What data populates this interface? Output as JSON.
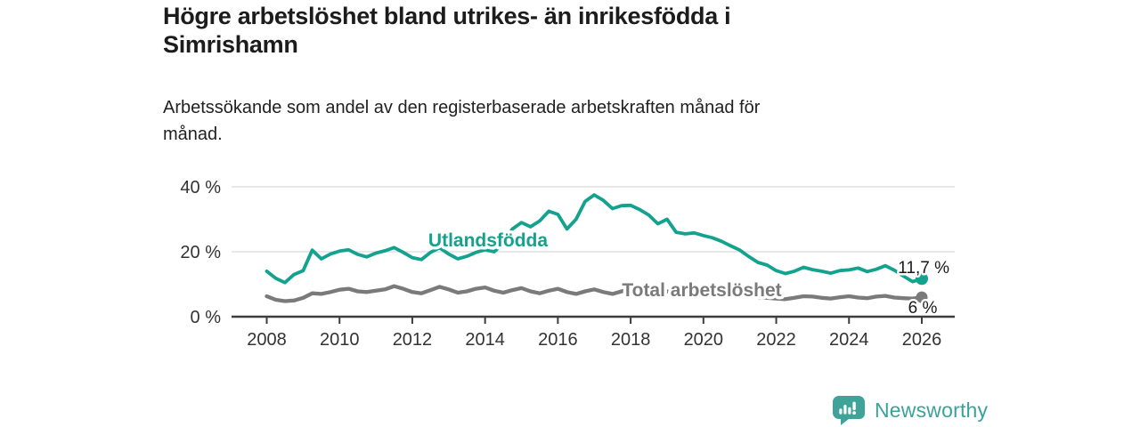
{
  "header": {
    "title_line1": "Högre arbetslöshet bland utrikes- än inrikesfödda i",
    "title_line2": "Simrishamn",
    "subtitle_line1": "Arbetssökande som andel av den registerbaserade arbetskraften månad för",
    "subtitle_line2": "månad."
  },
  "colors": {
    "accent_teal": "#12a28e",
    "line_gray": "#7a7a7a",
    "axis": "#3d3d3d",
    "gridline": "#d9d9d9",
    "tick_text": "#333333",
    "value_text": "#1a1a1a",
    "brand_teal": "#3ca19a"
  },
  "chart_data": {
    "type": "line",
    "title": "Högre arbetslöshet bland utrikes- än inrikesfödda i Simrishamn",
    "subtitle": "Arbetssökande som andel av den registerbaserade arbetskraften månad för månad.",
    "xlabel": "",
    "ylabel": "",
    "grid": "horizontal-y",
    "legend_position": "inline-labels",
    "ylim": [
      0,
      40
    ],
    "xlim": [
      2008,
      2026.9
    ],
    "y_ticks": [
      0,
      20,
      40
    ],
    "y_tick_labels": [
      "0 %",
      "20 %",
      "40 %"
    ],
    "x_ticks": [
      2008,
      2010,
      2012,
      2014,
      2016,
      2018,
      2020,
      2022,
      2024,
      2026
    ],
    "x_tick_labels": [
      "2008",
      "2010",
      "2012",
      "2014",
      "2016",
      "2018",
      "2020",
      "2022",
      "2024",
      "2026"
    ],
    "x": [
      2008.0,
      2008.25,
      2008.5,
      2008.75,
      2009.0,
      2009.25,
      2009.5,
      2009.75,
      2010.0,
      2010.25,
      2010.5,
      2010.75,
      2011.0,
      2011.25,
      2011.5,
      2011.75,
      2012.0,
      2012.25,
      2012.5,
      2012.75,
      2013.0,
      2013.25,
      2013.5,
      2013.75,
      2014.0,
      2014.25,
      2014.5,
      2014.75,
      2015.0,
      2015.25,
      2015.5,
      2015.75,
      2016.0,
      2016.25,
      2016.5,
      2016.75,
      2017.0,
      2017.25,
      2017.5,
      2017.75,
      2018.0,
      2018.25,
      2018.5,
      2018.75,
      2019.0,
      2019.25,
      2019.5,
      2019.75,
      2020.0,
      2020.25,
      2020.5,
      2020.75,
      2021.0,
      2021.25,
      2021.5,
      2021.75,
      2022.0,
      2022.25,
      2022.5,
      2022.75,
      2023.0,
      2023.25,
      2023.5,
      2023.75,
      2024.0,
      2024.25,
      2024.5,
      2024.75,
      2025.0,
      2025.25,
      2025.5,
      2025.75,
      2026.0
    ],
    "series": [
      {
        "id": "utlandsfodda",
        "name": "Utlandsfödda",
        "color": "#12a28e",
        "end_value": 11.7,
        "end_label": "11,7 %",
        "values": [
          14.0,
          11.8,
          10.5,
          13.0,
          14.2,
          20.5,
          17.8,
          19.3,
          20.2,
          20.6,
          19.2,
          18.4,
          19.6,
          20.3,
          21.3,
          19.8,
          18.2,
          17.6,
          19.8,
          21.2,
          19.3,
          17.8,
          18.6,
          19.8,
          20.6,
          20.0,
          22.5,
          27.0,
          29.0,
          27.7,
          29.5,
          32.5,
          31.5,
          27.0,
          30.0,
          35.5,
          37.5,
          35.8,
          33.3,
          34.2,
          34.3,
          33.0,
          31.3,
          28.6,
          30.0,
          26.0,
          25.5,
          25.8,
          25.0,
          24.3,
          23.2,
          21.8,
          20.5,
          18.5,
          16.7,
          15.9,
          14.2,
          13.3,
          14.0,
          15.2,
          14.5,
          14.0,
          13.4,
          14.2,
          14.4,
          15.0,
          13.9,
          14.6,
          15.7,
          14.3,
          12.5,
          10.8,
          11.7
        ]
      },
      {
        "id": "total-arbetsloshet",
        "name": "Total arbetslöshet",
        "color": "#7a7a7a",
        "end_value": 6,
        "end_label": "6 %",
        "values": [
          6.3,
          5.2,
          4.8,
          5.0,
          5.8,
          7.2,
          7.0,
          7.6,
          8.3,
          8.6,
          7.8,
          7.6,
          8.0,
          8.4,
          9.4,
          8.6,
          7.6,
          7.2,
          8.2,
          9.2,
          8.4,
          7.4,
          7.8,
          8.6,
          9.0,
          8.0,
          7.4,
          8.2,
          8.8,
          7.8,
          7.2,
          8.0,
          8.6,
          7.6,
          7.0,
          7.8,
          8.4,
          7.6,
          7.0,
          7.8,
          8.5,
          7.8,
          7.2,
          7.5,
          7.8,
          7.2,
          6.8,
          7.0,
          7.4,
          7.2,
          6.8,
          6.6,
          6.8,
          6.4,
          6.0,
          5.8,
          5.6,
          5.4,
          5.8,
          6.3,
          6.2,
          5.8,
          5.6,
          6.0,
          6.3,
          5.9,
          5.7,
          6.2,
          6.4,
          5.9,
          5.7,
          5.6,
          6.0
        ]
      }
    ]
  },
  "footer": {
    "brand": "Newsworthy",
    "brand_icon": "bar-chart-speech-bubble-icon"
  }
}
